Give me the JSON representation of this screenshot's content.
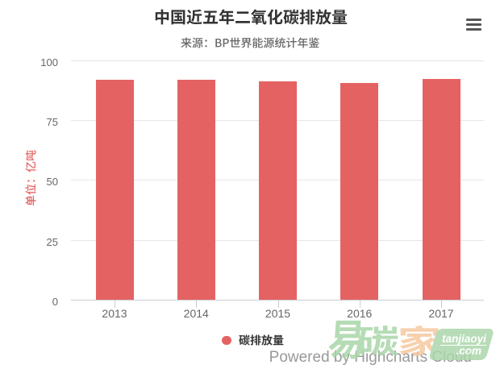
{
  "chart": {
    "title": "中国近五年二氧化碳排放量",
    "subtitle": "来源：BP世界能源统计年鉴",
    "context_menu": "hamburger-icon"
  },
  "chart_data": {
    "type": "bar",
    "title": "中国近五年二氧化碳排放量",
    "subtitle": "来源：BP世界能源统计年鉴",
    "categories": [
      "2013",
      "2014",
      "2015",
      "2016",
      "2017"
    ],
    "series": [
      {
        "name": "碳排放量",
        "values": [
          91.9,
          91.9,
          91.4,
          90.6,
          92.4
        ],
        "color": "#e56262"
      }
    ],
    "xlabel": "",
    "ylabel": "单位：亿吨",
    "ylim": [
      0,
      100
    ],
    "yticks": [
      0,
      25,
      50,
      75,
      100
    ],
    "grid": "horizontal",
    "legend_position": "bottom-center"
  },
  "legend": {
    "label": "碳排放量",
    "marker_color": "#e56262"
  },
  "credits": {
    "text": "Powered by Highcharts Cloud"
  },
  "watermark": {
    "logo_char_1": "易",
    "logo_char_2": "碳",
    "logo_char_3": "家",
    "badge_line1": "tanjiaoyi",
    "badge_line2": ".com",
    "green": "#a9d6a9",
    "orange": "#f6c89f"
  },
  "colors": {
    "bar": "#e56262",
    "title_text": "#333333",
    "subtitle_text": "#666666",
    "axis_label": "#666666",
    "y_axis_title": "#e56262",
    "gridline": "#e6e6e6",
    "axis_line": "#c8cdd3"
  }
}
